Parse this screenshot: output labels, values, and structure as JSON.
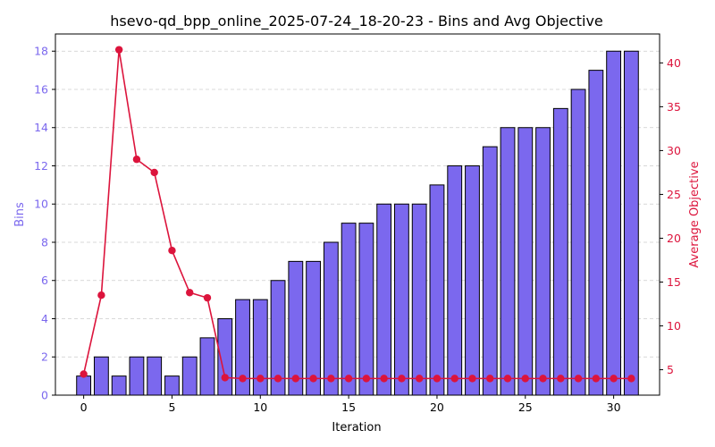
{
  "chart_data": {
    "type": "bar",
    "title": "hsevo-qd_bpp_online_2025-07-24_18-20-23 - Bins and Avg Objective",
    "xlabel": "Iteration",
    "ylabel_left": "Bins",
    "ylabel_right": "Average Objective",
    "colors": {
      "bins": "#7b68ee",
      "bins_edge": "#000000",
      "objective": "#dc143c",
      "left_axis_text": "#7b68ee",
      "right_axis_text": "#dc143c",
      "grid": "#cccccc"
    },
    "grid": true,
    "xlim": [
      -1.6,
      32.6
    ],
    "ylim_left": [
      0,
      18.9
    ],
    "ylim_right": [
      2.1,
      43.3
    ],
    "x_ticks": [
      0,
      5,
      10,
      15,
      20,
      25,
      30
    ],
    "y_ticks_left": [
      0,
      2,
      4,
      6,
      8,
      10,
      12,
      14,
      16,
      18
    ],
    "y_ticks_right": [
      5,
      10,
      15,
      20,
      25,
      30,
      35,
      40
    ],
    "x": [
      0,
      1,
      2,
      3,
      4,
      5,
      6,
      7,
      8,
      9,
      10,
      11,
      12,
      13,
      14,
      15,
      16,
      17,
      18,
      19,
      20,
      21,
      22,
      23,
      24,
      25,
      26,
      27,
      28,
      29,
      30,
      31
    ],
    "series": [
      {
        "axis": "left",
        "kind": "bar",
        "values": [
          1,
          2,
          1,
          2,
          2,
          1,
          2,
          3,
          4,
          5,
          5,
          6,
          7,
          7,
          8,
          9,
          9,
          10,
          10,
          10,
          11,
          12,
          12,
          13,
          14,
          14,
          14,
          15,
          16,
          17,
          18,
          18
        ]
      },
      {
        "axis": "right",
        "kind": "line",
        "values": [
          4.5,
          13.5,
          41.5,
          29.0,
          27.5,
          18.6,
          13.8,
          13.2,
          4.1,
          4.0,
          4.0,
          4.0,
          4.0,
          4.0,
          4.0,
          4.0,
          4.0,
          4.0,
          4.0,
          4.0,
          4.0,
          4.0,
          4.0,
          4.0,
          4.0,
          4.0,
          4.0,
          4.0,
          4.0,
          4.0,
          4.0,
          4.0
        ]
      }
    ]
  }
}
